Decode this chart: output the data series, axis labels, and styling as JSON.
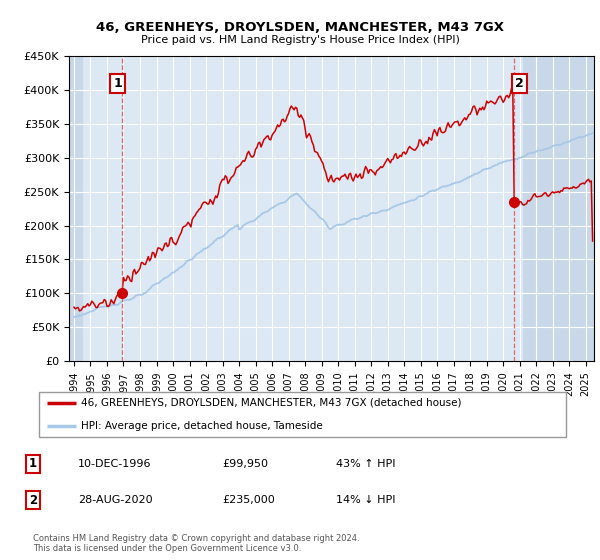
{
  "title": "46, GREENHEYS, DROYLSDEN, MANCHESTER, M43 7GX",
  "subtitle": "Price paid vs. HM Land Registry's House Price Index (HPI)",
  "ylim": [
    0,
    450000
  ],
  "yticks": [
    0,
    50000,
    100000,
    150000,
    200000,
    250000,
    300000,
    350000,
    400000,
    450000
  ],
  "ytick_labels": [
    "£0",
    "£50K",
    "£100K",
    "£150K",
    "£200K",
    "£250K",
    "£300K",
    "£350K",
    "£400K",
    "£450K"
  ],
  "xlim_start": 1993.7,
  "xlim_end": 2025.5,
  "hpi_color": "#a8c8e8",
  "price_color": "#cc0000",
  "sale1_x": 1996.94,
  "sale1_y": 99950,
  "sale1_label": "1",
  "sale1_date": "10-DEC-1996",
  "sale1_price": "£99,950",
  "sale1_note": "43% ↑ HPI",
  "sale2_x": 2020.66,
  "sale2_y": 235000,
  "sale2_label": "2",
  "sale2_date": "28-AUG-2020",
  "sale2_price": "£235,000",
  "sale2_note": "14% ↓ HPI",
  "legend_line1": "46, GREENHEYS, DROYLSDEN, MANCHESTER, M43 7GX (detached house)",
  "legend_line2": "HPI: Average price, detached house, Tameside",
  "footer": "Contains HM Land Registry data © Crown copyright and database right 2024.\nThis data is licensed under the Open Government Licence v3.0.",
  "background_color": "#ffffff",
  "plot_bg_color": "#dce9f5",
  "grid_color": "#ffffff",
  "hatch_color": "#c8d8e8"
}
